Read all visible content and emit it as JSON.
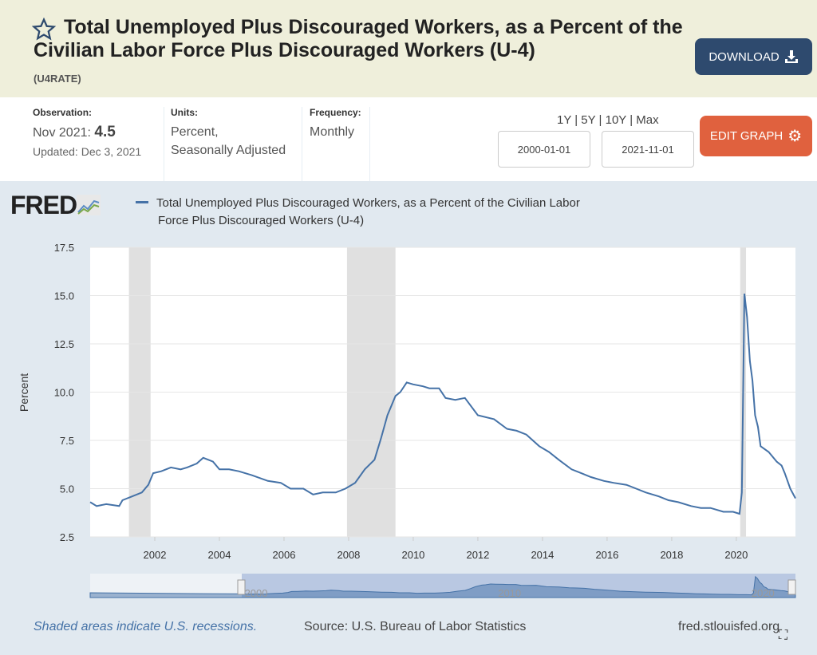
{
  "header": {
    "title": "Total Unemployed Plus Discouraged Workers, as a Percent of the Civilian Labor Force Plus Discouraged Workers (U-4)",
    "series_id": "(U4RATE)",
    "download_label": "DOWNLOAD"
  },
  "meta": {
    "observation_label": "Observation:",
    "observation_date": "Nov 2021:",
    "observation_value": "4.5",
    "updated": "Updated: Dec 3, 2021",
    "units_label": "Units:",
    "units_line1": "Percent,",
    "units_line2": "Seasonally Adjusted",
    "frequency_label": "Frequency:",
    "frequency": "Monthly"
  },
  "controls": {
    "ranges": "1Y | 5Y | 10Y | Max",
    "start_date": "2000-01-01",
    "end_date": "2021-11-01",
    "edit_label": "EDIT GRAPH"
  },
  "logo": "FRED",
  "footer": {
    "recession_note": "Shaded areas indicate U.S. recessions.",
    "source": "Source: U.S. Bureau of Labor Statistics",
    "site": "fred.stlouisfed.org"
  },
  "colors": {
    "line": "#4572a7",
    "recession": "#e0e0e0",
    "download": "#2e4a6e",
    "edit": "#e0613e"
  },
  "chart_data": {
    "type": "line",
    "legend_line1": "Total Unemployed Plus Discouraged Workers, as a Percent of the Civilian Labor",
    "legend_line2": "Force Plus Discouraged Workers (U-4)",
    "ylabel": "Percent",
    "xlim": [
      2000.0,
      2021.83
    ],
    "ylim": [
      2.5,
      17.5
    ],
    "yticks": [
      "2.5",
      "5.0",
      "7.5",
      "10.0",
      "12.5",
      "15.0",
      "17.5"
    ],
    "xticks": [
      "2002",
      "2004",
      "2006",
      "2008",
      "2010",
      "2012",
      "2014",
      "2016",
      "2018",
      "2020"
    ],
    "recessions": [
      [
        2001.2,
        2001.87
      ],
      [
        2007.95,
        2009.45
      ],
      [
        2020.12,
        2020.3
      ]
    ],
    "navigator_labels": [
      "2000",
      "2010",
      "2020"
    ],
    "navigator_range": [
      1994.0,
      2021.83
    ],
    "x": [
      2000.0,
      2000.2,
      2000.5,
      2000.9,
      2001.0,
      2001.3,
      2001.6,
      2001.8,
      2001.95,
      2002.2,
      2002.5,
      2002.8,
      2003.0,
      2003.3,
      2003.5,
      2003.8,
      2004.0,
      2004.3,
      2004.6,
      2005.0,
      2005.5,
      2005.9,
      2006.2,
      2006.6,
      2006.9,
      2007.2,
      2007.6,
      2007.9,
      2008.2,
      2008.5,
      2008.8,
      2009.0,
      2009.2,
      2009.45,
      2009.6,
      2009.8,
      2010.0,
      2010.3,
      2010.5,
      2010.8,
      2011.0,
      2011.3,
      2011.6,
      2012.0,
      2012.5,
      2012.9,
      2013.2,
      2013.5,
      2013.9,
      2014.2,
      2014.5,
      2014.9,
      2015.2,
      2015.5,
      2015.9,
      2016.2,
      2016.6,
      2016.9,
      2017.2,
      2017.6,
      2017.9,
      2018.2,
      2018.6,
      2018.9,
      2019.2,
      2019.6,
      2019.9,
      2020.1,
      2020.17,
      2020.25,
      2020.33,
      2020.42,
      2020.5,
      2020.58,
      2020.67,
      2020.75,
      2021.0,
      2021.25,
      2021.4,
      2021.5,
      2021.67,
      2021.83
    ],
    "values": [
      4.3,
      4.1,
      4.2,
      4.1,
      4.4,
      4.6,
      4.8,
      5.2,
      5.8,
      5.9,
      6.1,
      6.0,
      6.1,
      6.3,
      6.6,
      6.4,
      6.0,
      6.0,
      5.9,
      5.7,
      5.4,
      5.3,
      5.0,
      5.0,
      4.7,
      4.8,
      4.8,
      5.0,
      5.3,
      6.0,
      6.5,
      7.6,
      8.8,
      9.8,
      10.0,
      10.5,
      10.4,
      10.3,
      10.2,
      10.2,
      9.7,
      9.6,
      9.7,
      8.8,
      8.6,
      8.1,
      8.0,
      7.8,
      7.2,
      6.9,
      6.5,
      6.0,
      5.8,
      5.6,
      5.4,
      5.3,
      5.2,
      5.0,
      4.8,
      4.6,
      4.4,
      4.3,
      4.1,
      4.0,
      4.0,
      3.8,
      3.8,
      3.7,
      4.8,
      15.1,
      13.9,
      11.6,
      10.6,
      8.8,
      8.2,
      7.2,
      6.9,
      6.4,
      6.2,
      5.8,
      5.0,
      4.5
    ]
  }
}
